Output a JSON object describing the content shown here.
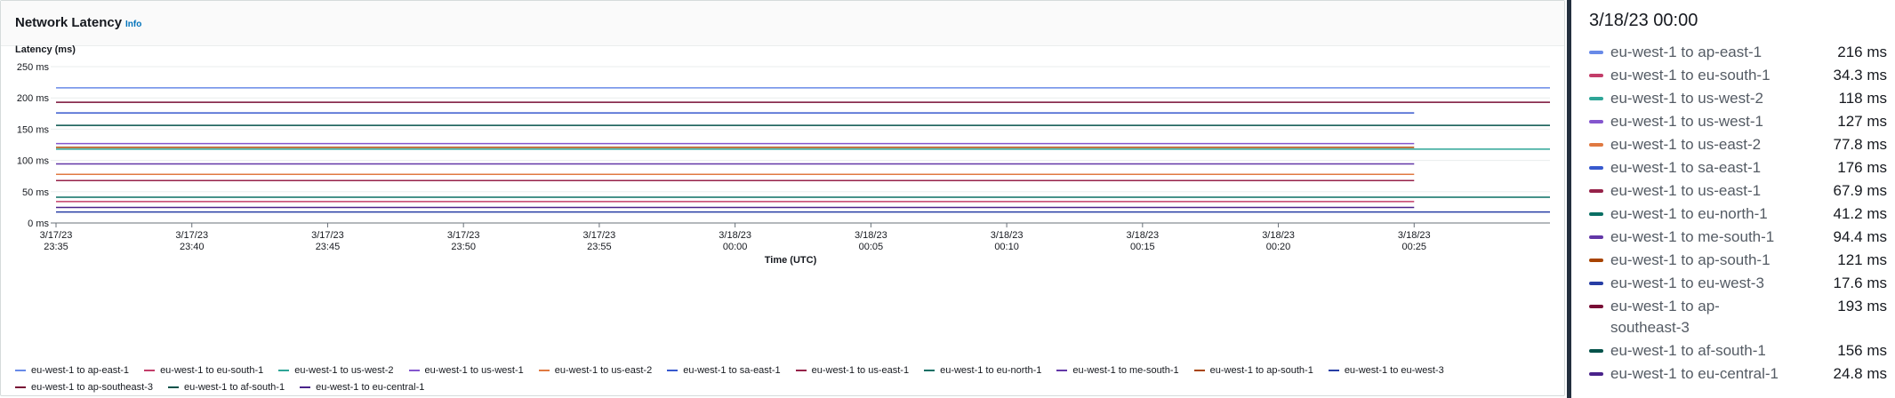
{
  "panel": {
    "title": "Network Latency",
    "info_label": "Info"
  },
  "tooltip": {
    "time": "3/18/23 00:00",
    "rows": [
      {
        "label": "eu-west-1 to ap-east-1",
        "value": "216 ms"
      },
      {
        "label": "eu-west-1 to eu-south-1",
        "value": "34.3 ms"
      },
      {
        "label": "eu-west-1 to us-west-2",
        "value": "118 ms"
      },
      {
        "label": "eu-west-1 to us-west-1",
        "value": "127 ms"
      },
      {
        "label": "eu-west-1 to us-east-2",
        "value": "77.8 ms"
      },
      {
        "label": "eu-west-1 to sa-east-1",
        "value": "176 ms"
      },
      {
        "label": "eu-west-1 to us-east-1",
        "value": "67.9 ms"
      },
      {
        "label": "eu-west-1 to eu-north-1",
        "value": "41.2 ms"
      },
      {
        "label": "eu-west-1 to me-south-1",
        "value": "94.4 ms"
      },
      {
        "label": "eu-west-1 to ap-south-1",
        "value": "121 ms"
      },
      {
        "label": "eu-west-1 to eu-west-3",
        "value": "17.6 ms"
      },
      {
        "label": "eu-west-1 to ap-southeast-3",
        "value": "193 ms"
      },
      {
        "label": "eu-west-1 to af-south-1",
        "value": "156 ms"
      },
      {
        "label": "eu-west-1 to eu-central-1",
        "value": "24.8 ms"
      }
    ]
  },
  "chart_data": {
    "type": "line",
    "ylabel": "Latency (ms)",
    "xlabel": "Time (UTC)",
    "ylim": [
      0,
      250
    ],
    "y_ticks": [
      "0 ms",
      "50 ms",
      "100 ms",
      "150 ms",
      "200 ms",
      "250 ms"
    ],
    "x_ticks": [
      [
        "3/17/23",
        "23:35"
      ],
      [
        "3/17/23",
        "23:40"
      ],
      [
        "3/17/23",
        "23:45"
      ],
      [
        "3/17/23",
        "23:50"
      ],
      [
        "3/17/23",
        "23:55"
      ],
      [
        "3/18/23",
        "00:00"
      ],
      [
        "3/18/23",
        "00:05"
      ],
      [
        "3/18/23",
        "00:10"
      ],
      [
        "3/18/23",
        "00:15"
      ],
      [
        "3/18/23",
        "00:20"
      ],
      [
        "3/18/23",
        "00:25"
      ]
    ],
    "x_range": [
      "3/17/23 23:35",
      "3/18/23 00:30"
    ],
    "grid": true,
    "legend_position": "bottom",
    "series": [
      {
        "name": "eu-west-1 to ap-east-1",
        "color": "#688ae8",
        "start": "3/17/23 23:35",
        "end": "3/18/23 00:30",
        "value": 216
      },
      {
        "name": "eu-west-1 to eu-south-1",
        "color": "#c33d69",
        "start": "3/17/23 23:35",
        "end": "3/18/23 00:25",
        "value": 34.3
      },
      {
        "name": "eu-west-1 to us-west-2",
        "color": "#2ea597",
        "start": "3/17/23 23:35",
        "end": "3/18/23 00:30",
        "value": 118
      },
      {
        "name": "eu-west-1 to us-west-1",
        "color": "#8456ce",
        "start": "3/17/23 23:35",
        "end": "3/18/23 00:25",
        "value": 127
      },
      {
        "name": "eu-west-1 to us-east-2",
        "color": "#e07941",
        "start": "3/17/23 23:35",
        "end": "3/18/23 00:25",
        "value": 77.8
      },
      {
        "name": "eu-west-1 to sa-east-1",
        "color": "#3759ce",
        "start": "3/17/23 23:35",
        "end": "3/18/23 00:25",
        "value": 176
      },
      {
        "name": "eu-west-1 to us-east-1",
        "color": "#962249",
        "start": "3/17/23 23:35",
        "end": "3/18/23 00:25",
        "value": 67.9
      },
      {
        "name": "eu-west-1 to eu-north-1",
        "color": "#096f64",
        "start": "3/17/23 23:35",
        "end": "3/18/23 00:30",
        "value": 41.2
      },
      {
        "name": "eu-west-1 to me-south-1",
        "color": "#6237a7",
        "start": "3/17/23 23:35",
        "end": "3/18/23 00:25",
        "value": 94.4
      },
      {
        "name": "eu-west-1 to ap-south-1",
        "color": "#a84401",
        "start": "3/17/23 23:35",
        "end": "3/18/23 00:25",
        "value": 121
      },
      {
        "name": "eu-west-1 to eu-west-3",
        "color": "#273ea5",
        "start": "3/17/23 23:35",
        "end": "3/18/23 00:30",
        "value": 17.6
      },
      {
        "name": "eu-west-1 to ap-southeast-3",
        "color": "#780d35",
        "start": "3/17/23 23:35",
        "end": "3/18/23 00:30",
        "value": 193
      },
      {
        "name": "eu-west-1 to af-south-1",
        "color": "#03524a",
        "start": "3/17/23 23:35",
        "end": "3/18/23 00:30",
        "value": 156
      },
      {
        "name": "eu-west-1 to eu-central-1",
        "color": "#4a238b",
        "start": "3/17/23 23:35",
        "end": "3/18/23 00:25",
        "value": 24.8
      }
    ]
  }
}
